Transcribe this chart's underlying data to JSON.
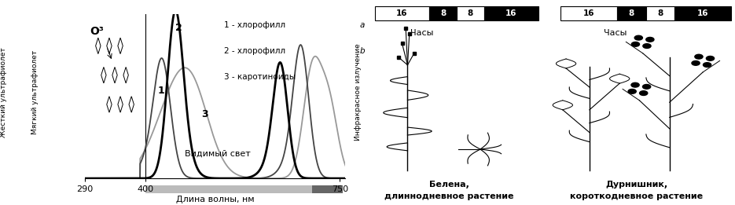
{
  "left_panel": {
    "xmin": 290,
    "xmax": 760,
    "xlabel": "Длина волны, нм",
    "left_label1": "Жесткий ультрафиолет",
    "left_label2": "Мягкий ультрафиолет",
    "right_label": "Инфракрасное излучение",
    "bottom_label": "Видимый свет",
    "o3_label": "О³",
    "legend_line1_pre": "1 - хлорофилл ",
    "legend_line1_italic": "a",
    "legend_line2_pre": "2 - хлорофилл ",
    "legend_line2_italic": "b",
    "legend_line3": "3 - каротиноиды",
    "color_a": "#444444",
    "color_b": "#000000",
    "color_c": "#999999"
  },
  "right_panel": {
    "segs": [
      16,
      8,
      8,
      16
    ],
    "seg_colors": [
      "#ffffff",
      "#000000",
      "#ffffff",
      "#000000"
    ],
    "chas": "Часы",
    "ir_label": "Инфракрасное излучение",
    "plant1_line1": "Белена,",
    "plant1_line2": "длиннодневное растение",
    "plant2_line1": "Дурнишник,",
    "plant2_line2": "короткодневное растение"
  }
}
